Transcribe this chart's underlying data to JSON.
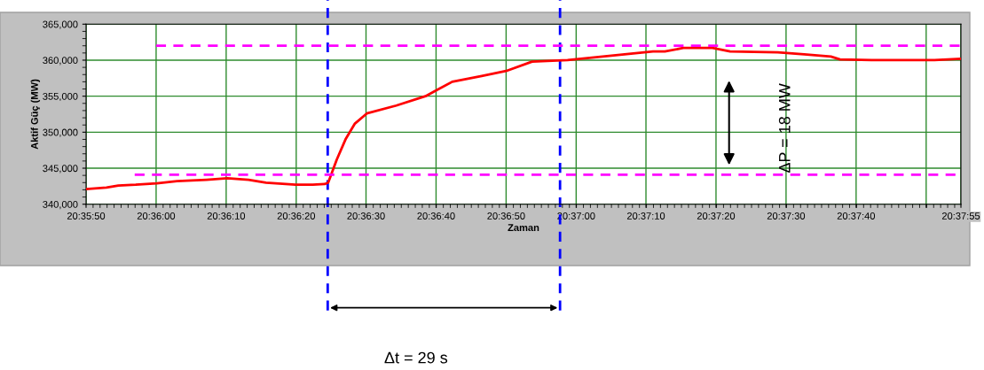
{
  "chart_data": {
    "type": "line",
    "xlabel": "Zaman",
    "ylabel": "Aktif Güç (MW)",
    "x": [
      20.59722,
      20.59803,
      20.5985,
      20.59919,
      20.60003,
      20.60083,
      20.602,
      20.60283,
      20.60367,
      20.60436,
      20.60553,
      20.60622,
      20.60669,
      20.60683,
      20.60717,
      20.60753,
      20.60789,
      20.60836,
      20.60953,
      20.61069,
      20.61117,
      20.61175,
      20.61292,
      20.61389,
      20.61492,
      20.61633,
      20.61772,
      20.61972,
      20.62019,
      20.62092,
      20.62208,
      20.62278,
      20.62467,
      20.62572,
      20.62678,
      20.62714,
      20.62839,
      20.63089,
      20.63189
    ],
    "series": [
      {
        "color": "#ff0000",
        "values": [
          342100,
          342300,
          342600,
          342700,
          342900,
          343200,
          343400,
          343600,
          343400,
          343000,
          342700,
          342700,
          342800,
          343000,
          346200,
          349100,
          351200,
          352600,
          353700,
          355000,
          355900,
          357000,
          357800,
          358500,
          359800,
          360000,
          360500,
          361200,
          361200,
          361700,
          361700,
          361200,
          361100,
          360800,
          360500,
          360100,
          360000,
          360000,
          360200
        ]
      },
      {
        "type": "line",
        "color": "#ff00ff",
        "line_style": "dashed",
        "x": [
          20.6,
          20.63194
        ],
        "values": [
          362000,
          362000
        ]
      },
      {
        "type": "line",
        "color": "#ff00ff",
        "line_style": "dashed",
        "x": [
          20.59915,
          20.63194
        ],
        "values": [
          344100,
          344100
        ]
      }
    ],
    "ref_lines": [
      {
        "axis": "x",
        "value": 20.60681,
        "color": "#0000ff",
        "line_style": "dashed"
      },
      {
        "axis": "x",
        "value": 20.61603,
        "color": "#0000ff",
        "line_style": "dashed"
      }
    ],
    "annotations": [
      "ΔP = 18 MW",
      "Δt = 29 s"
    ],
    "xlim": [
      20.59722,
      20.63194
    ],
    "xticks": [
      {
        "value": 20.59722,
        "label": "20:35:50"
      },
      {
        "value": 20.6,
        "label": "20:36:00"
      },
      {
        "value": 20.60278,
        "label": "20:36:10"
      },
      {
        "value": 20.60556,
        "label": "20:36:20"
      },
      {
        "value": 20.60833,
        "label": "20:36:30"
      },
      {
        "value": 20.61111,
        "label": "20:36:40"
      },
      {
        "value": 20.61389,
        "label": "20:36:50"
      },
      {
        "value": 20.61667,
        "label": "20:37:00"
      },
      {
        "value": 20.61944,
        "label": "20:37:10"
      },
      {
        "value": 20.62222,
        "label": "20:37:20"
      },
      {
        "value": 20.625,
        "label": "20:37:30"
      },
      {
        "value": 20.62778,
        "label": "20:37:40"
      },
      {
        "value": 20.63056,
        "label": null
      },
      {
        "value": 20.63194,
        "label": "20:37:55"
      }
    ],
    "ylim": [
      340000,
      365000
    ],
    "yticks": [
      {
        "value": 340000,
        "label": "340,000"
      },
      {
        "value": 345000,
        "label": "345,000"
      },
      {
        "value": 350000,
        "label": "350,000"
      },
      {
        "value": 355000,
        "label": "355,000"
      },
      {
        "value": 360000,
        "label": "360,000"
      },
      {
        "value": 365000,
        "label": "365,000"
      }
    ],
    "grid": true,
    "legend": false,
    "marker": "none",
    "line_style": "solid"
  }
}
